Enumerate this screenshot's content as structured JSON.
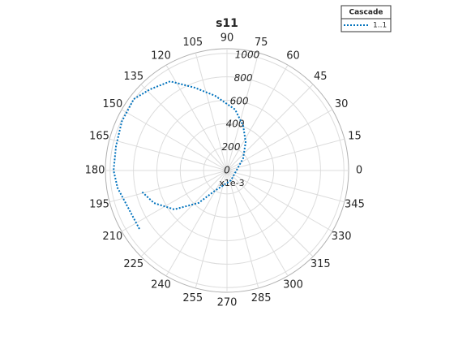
{
  "chart_data": {
    "type": "polar",
    "title": "s11",
    "series": [
      {
        "name": "1..1",
        "color": "#0072bd",
        "theta": [
          213.7,
          189,
          180,
          167.6,
          155,
          142.6,
          133.5,
          122.5,
          111.4,
          99,
          82.4,
          70,
          56.7,
          37,
          292.6,
          239,
          228.8,
          216.4,
          204,
          194
        ],
        "r": [
          900,
          948,
          970,
          972,
          992,
          1004,
          956,
          903,
          760,
          646,
          525,
          406,
          290,
          173,
          90,
          202,
          368,
          560,
          683,
          750
        ]
      }
    ],
    "rlim": [
      0,
      1040
    ],
    "rticks": [
      0,
      200,
      400,
      600,
      800,
      1000
    ],
    "r_exponent_label": "x1e-3",
    "thetaticks": [
      0,
      15,
      30,
      45,
      60,
      75,
      90,
      105,
      120,
      135,
      150,
      165,
      180,
      195,
      210,
      225,
      240,
      255,
      270,
      285,
      300,
      315,
      330,
      345
    ],
    "legend_title": "Cascade",
    "legend_position": "top-right",
    "grid": true
  }
}
